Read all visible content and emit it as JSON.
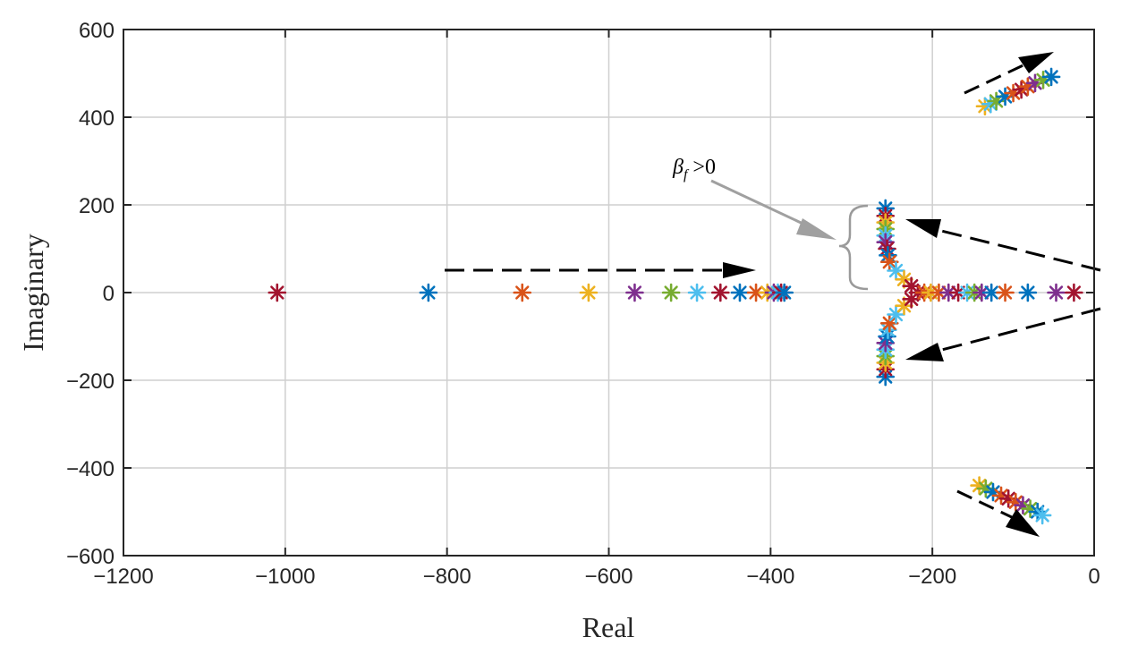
{
  "chart_data": {
    "type": "scatter",
    "title": "",
    "xlabel": "Real",
    "ylabel": "Imaginary",
    "xlim": [
      -1200,
      0
    ],
    "ylim": [
      -600,
      600
    ],
    "xticks": [
      -1200,
      -1000,
      -800,
      -600,
      -400,
      -200,
      0
    ],
    "yticks": [
      -600,
      -400,
      -200,
      0,
      200,
      400,
      600
    ],
    "xtick_labels": [
      "−1200",
      "−1000",
      "−800",
      "−600",
      "−400",
      "−200",
      "0"
    ],
    "ytick_labels": [
      "−600",
      "−400",
      "−200",
      "0",
      "200",
      "400",
      "600"
    ],
    "grid": true,
    "marker": "asterisk",
    "annotation": {
      "text": "β",
      "subscript": "f",
      "suffix": " >0"
    },
    "colors": [
      "#0072bd",
      "#d95319",
      "#edb120",
      "#7e2f8e",
      "#77ac30",
      "#4dbeee",
      "#a2142f"
    ],
    "points": [
      {
        "x": -1010,
        "y": 0,
        "c": 6
      },
      {
        "x": -823,
        "y": 0,
        "c": 0
      },
      {
        "x": -707,
        "y": 0,
        "c": 1
      },
      {
        "x": -625,
        "y": 0,
        "c": 2
      },
      {
        "x": -568,
        "y": 0,
        "c": 3
      },
      {
        "x": -523,
        "y": 0,
        "c": 4
      },
      {
        "x": -491,
        "y": 0,
        "c": 5
      },
      {
        "x": -462,
        "y": 0,
        "c": 6
      },
      {
        "x": -438,
        "y": 0,
        "c": 0
      },
      {
        "x": -418,
        "y": 0,
        "c": 1
      },
      {
        "x": -404,
        "y": 0,
        "c": 2
      },
      {
        "x": -396,
        "y": 0,
        "c": 3
      },
      {
        "x": -391,
        "y": 0,
        "c": 5
      },
      {
        "x": -387,
        "y": 0,
        "c": 6
      },
      {
        "x": -383,
        "y": 0,
        "c": 0
      },
      {
        "x": -258,
        "y": 192,
        "c": 0
      },
      {
        "x": -258,
        "y": 175,
        "c": 6
      },
      {
        "x": -258,
        "y": 160,
        "c": 2
      },
      {
        "x": -258,
        "y": 145,
        "c": 4
      },
      {
        "x": -258,
        "y": 130,
        "c": 5
      },
      {
        "x": -258,
        "y": 115,
        "c": 3
      },
      {
        "x": -256,
        "y": 100,
        "c": 6
      },
      {
        "x": -255,
        "y": 85,
        "c": 0
      },
      {
        "x": -253,
        "y": 70,
        "c": 1
      },
      {
        "x": -245,
        "y": 50,
        "c": 5
      },
      {
        "x": -235,
        "y": 30,
        "c": 2
      },
      {
        "x": -226,
        "y": 15,
        "c": 6
      },
      {
        "x": -258,
        "y": -192,
        "c": 0
      },
      {
        "x": -258,
        "y": -175,
        "c": 6
      },
      {
        "x": -258,
        "y": -160,
        "c": 2
      },
      {
        "x": -258,
        "y": -145,
        "c": 4
      },
      {
        "x": -258,
        "y": -130,
        "c": 5
      },
      {
        "x": -258,
        "y": -115,
        "c": 3
      },
      {
        "x": -256,
        "y": -100,
        "c": 0
      },
      {
        "x": -255,
        "y": -85,
        "c": 5
      },
      {
        "x": -253,
        "y": -70,
        "c": 1
      },
      {
        "x": -245,
        "y": -50,
        "c": 5
      },
      {
        "x": -235,
        "y": -30,
        "c": 2
      },
      {
        "x": -226,
        "y": -15,
        "c": 6
      },
      {
        "x": -218,
        "y": 0,
        "c": 6
      },
      {
        "x": -210,
        "y": 0,
        "c": 1
      },
      {
        "x": -202,
        "y": 0,
        "c": 2
      },
      {
        "x": -192,
        "y": 0,
        "c": 1
      },
      {
        "x": -180,
        "y": 0,
        "c": 3
      },
      {
        "x": -168,
        "y": 0,
        "c": 6
      },
      {
        "x": -157,
        "y": 0,
        "c": 5
      },
      {
        "x": -148,
        "y": 0,
        "c": 4
      },
      {
        "x": -139,
        "y": 0,
        "c": 3
      },
      {
        "x": -127,
        "y": 0,
        "c": 0
      },
      {
        "x": -110,
        "y": 0,
        "c": 1
      },
      {
        "x": -82,
        "y": 0,
        "c": 0
      },
      {
        "x": -47,
        "y": 0,
        "c": 3
      },
      {
        "x": -25,
        "y": 0,
        "c": 6
      },
      {
        "x": -135,
        "y": 425,
        "c": 2
      },
      {
        "x": -128,
        "y": 430,
        "c": 5
      },
      {
        "x": -121,
        "y": 437,
        "c": 4
      },
      {
        "x": -110,
        "y": 447,
        "c": 0
      },
      {
        "x": -100,
        "y": 455,
        "c": 1
      },
      {
        "x": -90,
        "y": 463,
        "c": 6
      },
      {
        "x": -82,
        "y": 470,
        "c": 1
      },
      {
        "x": -73,
        "y": 478,
        "c": 3
      },
      {
        "x": -63,
        "y": 485,
        "c": 4
      },
      {
        "x": -53,
        "y": 492,
        "c": 0
      },
      {
        "x": -142,
        "y": -440,
        "c": 2
      },
      {
        "x": -134,
        "y": -447,
        "c": 4
      },
      {
        "x": -125,
        "y": -455,
        "c": 0
      },
      {
        "x": -115,
        "y": -463,
        "c": 1
      },
      {
        "x": -106,
        "y": -470,
        "c": 6
      },
      {
        "x": -97,
        "y": -478,
        "c": 1
      },
      {
        "x": -88,
        "y": -485,
        "c": 3
      },
      {
        "x": -79,
        "y": -493,
        "c": 4
      },
      {
        "x": -70,
        "y": -500,
        "c": 0
      },
      {
        "x": -64,
        "y": -508,
        "c": 5
      }
    ]
  }
}
